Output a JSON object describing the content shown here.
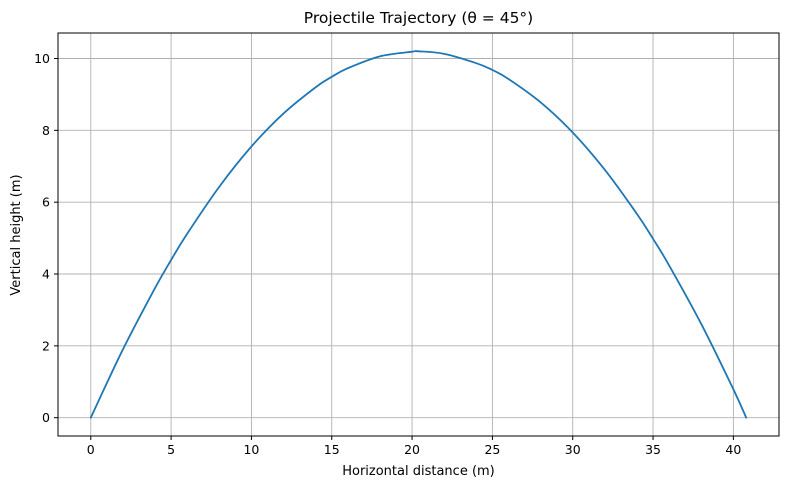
{
  "chart_data": {
    "type": "line",
    "title": "Projectile Trajectory (θ = 45°)",
    "xlabel": "Horizontal distance (m)",
    "ylabel": "Vertical height (m)",
    "xlim": [
      -2.04,
      42.84
    ],
    "ylim": [
      -0.51,
      10.71
    ],
    "xticks": [
      0,
      5,
      10,
      15,
      20,
      25,
      30,
      35,
      40
    ],
    "yticks": [
      0,
      2,
      4,
      6,
      8,
      10
    ],
    "grid": true,
    "colors": {
      "series": "#1f77b4",
      "grid": "#b0b0b0",
      "axis": "#000000"
    },
    "series": [
      {
        "x": [
          0,
          2,
          4,
          5,
          6,
          8,
          10,
          12,
          14,
          15,
          16,
          18,
          20,
          20.4,
          22,
          24,
          25,
          26,
          28,
          30,
          32,
          34,
          35,
          36,
          38,
          40,
          40.8
        ],
        "y": [
          0,
          1.9,
          3.61,
          4.39,
          5.12,
          6.43,
          7.55,
          8.47,
          9.2,
          9.49,
          9.73,
          10.06,
          10.19,
          10.2,
          10.13,
          9.87,
          9.68,
          9.43,
          8.78,
          7.94,
          6.9,
          5.67,
          4.98,
          4.24,
          2.61,
          0.79,
          0
        ]
      }
    ]
  }
}
